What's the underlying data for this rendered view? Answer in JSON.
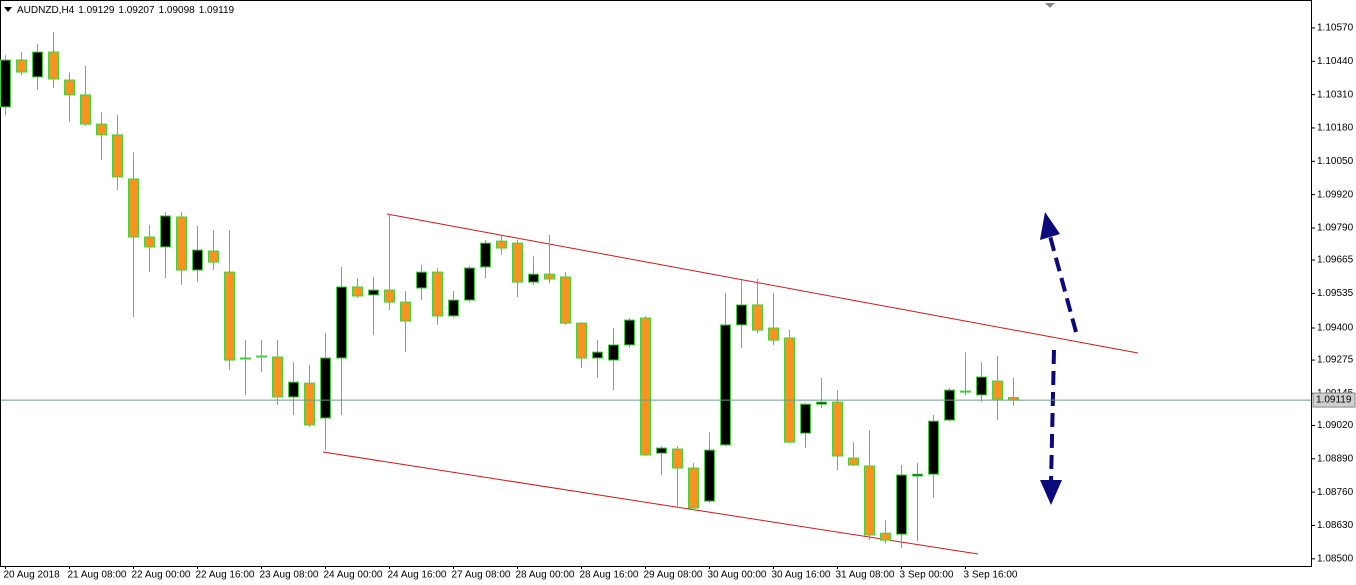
{
  "chart_data": {
    "type": "candlestick",
    "title": "AUDNZD,H4",
    "categories": [
      "20 Aug 2018",
      null,
      null,
      null,
      "21 Aug 08:00",
      null,
      null,
      null,
      "22 Aug 00:00",
      null,
      null,
      null,
      "22 Aug 16:00",
      null,
      null,
      null,
      "23 Aug 08:00",
      null,
      null,
      null,
      "24 Aug 00:00",
      null,
      null,
      null,
      "24 Aug 16:00",
      null,
      null,
      null,
      "27 Aug 08:00",
      null,
      null,
      null,
      "28 Aug 00:00",
      null,
      null,
      null,
      "28 Aug 16:00",
      null,
      null,
      null,
      "29 Aug 08:00",
      null,
      null,
      null,
      "30 Aug 00:00",
      null,
      null,
      null,
      "30 Aug 16:00",
      null,
      null,
      null,
      "31 Aug 08:00",
      null,
      null,
      null,
      "3 Sep 00:00",
      null,
      null,
      null,
      "3 Sep 16:00",
      null,
      null,
      null
    ],
    "open": [
      1.10262,
      1.10445,
      1.10379,
      1.10476,
      1.10367,
      1.10309,
      1.10195,
      1.10153,
      1.09981,
      1.09755,
      1.09716,
      1.09833,
      1.09626,
      1.097,
      1.09618,
      1.09279,
      1.09287,
      1.09287,
      1.09131,
      1.09185,
      1.09049,
      1.09283,
      1.0956,
      1.09529,
      1.09548,
      1.09501,
      1.09556,
      1.09618,
      1.09447,
      1.09509,
      1.09638,
      1.09739,
      1.09731,
      1.09579,
      1.0961,
      1.09599,
      1.09419,
      1.09283,
      1.09275,
      1.09334,
      1.09439,
      1.08912,
      1.08928,
      1.08854,
      1.08725,
      1.08944,
      1.09412,
      1.0949,
      1.094,
      1.09361,
      1.0899,
      1.09103,
      1.09111,
      1.08893,
      1.08862,
      1.086,
      1.08596,
      1.08823,
      1.0883,
      1.09041,
      1.0915,
      1.09139,
      1.09193,
      1.09129
    ],
    "high": [
      1.10464,
      1.10476,
      1.10507,
      1.10554,
      1.10398,
      1.10422,
      1.10242,
      1.10231,
      1.10086,
      1.09802,
      1.09852,
      1.09852,
      1.09798,
      1.09782,
      1.09782,
      1.09353,
      1.09353,
      1.09353,
      1.09267,
      1.09256,
      1.0938,
      1.09638,
      1.09595,
      1.09599,
      1.09844,
      1.09544,
      1.09646,
      1.09634,
      1.09544,
      1.09642,
      1.09743,
      1.09759,
      1.09743,
      1.0968,
      1.09763,
      1.09618,
      1.09423,
      1.09353,
      1.094,
      1.09439,
      1.09447,
      1.0894,
      1.0894,
      1.08873,
      1.08994,
      1.09536,
      1.09587,
      1.09591,
      1.09536,
      1.09392,
      1.09107,
      1.09205,
      1.09158,
      1.08955,
      1.09002,
      1.08651,
      1.08866,
      1.08873,
      1.09061,
      1.09166,
      1.09306,
      1.09267,
      1.09291,
      1.09207
    ],
    "low": [
      1.1023,
      1.10386,
      1.10328,
      1.10336,
      1.10203,
      1.10188,
      1.10055,
      1.09938,
      1.09443,
      1.09618,
      1.09595,
      1.09568,
      1.09579,
      1.09626,
      1.09236,
      1.09139,
      1.09228,
      1.091,
      1.09061,
      1.09014,
      1.08924,
      1.09061,
      1.09517,
      1.09373,
      1.0947,
      1.09306,
      1.09509,
      1.09412,
      1.09439,
      1.09501,
      1.09595,
      1.09685,
      1.09521,
      1.09568,
      1.09575,
      1.09412,
      1.09244,
      1.09205,
      1.09158,
      1.09322,
      1.08901,
      1.08827,
      1.08698,
      1.0869,
      1.08717,
      1.0894,
      1.09322,
      1.0938,
      1.09334,
      1.08951,
      1.08932,
      1.09088,
      1.08846,
      1.08862,
      1.08573,
      1.08561,
      1.08542,
      1.08569,
      1.08737,
      1.09037,
      1.09139,
      1.09111,
      1.09041,
      1.09098
    ],
    "close": [
      1.10445,
      1.10398,
      1.10476,
      1.10371,
      1.10309,
      1.10195,
      1.10153,
      1.09989,
      1.09755,
      1.09716,
      1.09837,
      1.09626,
      1.09704,
      1.09657,
      1.09275,
      1.09283,
      1.09291,
      1.09131,
      1.09189,
      1.09022,
      1.09283,
      1.0956,
      1.09525,
      1.09548,
      1.09501,
      1.09427,
      1.09618,
      1.09447,
      1.09509,
      1.09634,
      1.09731,
      1.09712,
      1.09579,
      1.0961,
      1.09591,
      1.09419,
      1.09283,
      1.09306,
      1.09334,
      1.09431,
      1.08905,
      1.08932,
      1.08854,
      1.08698,
      1.08924,
      1.09412,
      1.0949,
      1.09392,
      1.09353,
      1.08955,
      1.09103,
      1.09111,
      1.08901,
      1.08866,
      1.08593,
      1.08573,
      1.08827,
      1.0883,
      1.09037,
      1.09158,
      1.09154,
      1.09209,
      1.09123,
      1.09119
    ],
    "up_color": "#000000",
    "down_color": "#f7931e",
    "wick_color": "#44d33a",
    "ylim": [
      1.08472,
      1.10679
    ],
    "yticks": [
      {
        "value": 1.1057,
        "label": "1.10570"
      },
      {
        "value": 1.1044,
        "label": "1.10440"
      },
      {
        "value": 1.1031,
        "label": "1.10310"
      },
      {
        "value": 1.1018,
        "label": "1.10180"
      },
      {
        "value": 1.1005,
        "label": "1.10050"
      },
      {
        "value": 1.0992,
        "label": "1.09920"
      },
      {
        "value": 1.0979,
        "label": "1.09790"
      },
      1.09665,
      1.09535,
      {
        "value": 1.094,
        "label": "1.09400"
      },
      1.09275,
      1.09145,
      {
        "value": 1.0902,
        "label": "1.09020"
      },
      {
        "value": 1.0889,
        "label": "1.08890"
      },
      {
        "value": 1.0876,
        "label": "1.08760"
      },
      {
        "value": 1.0863,
        "label": "1.08630"
      },
      {
        "value": 1.085,
        "label": "1.08500"
      }
    ],
    "price_line_color": "#6b9b88"
  }
}
